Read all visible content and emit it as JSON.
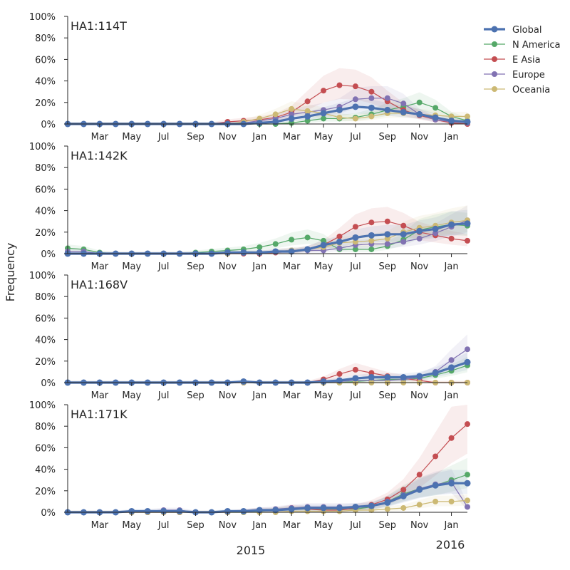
{
  "chart_data": {
    "type": "line",
    "ylabel": "Frequency",
    "year_labels": [
      "2015",
      "2016"
    ],
    "month_ticks": [
      "Mar",
      "May",
      "Jul",
      "Sep",
      "Nov",
      "Jan",
      "Mar",
      "May",
      "Jul",
      "Sep",
      "Nov",
      "Jan"
    ],
    "y_ticks": [
      "0%",
      "20%",
      "40%",
      "60%",
      "80%",
      "100%"
    ],
    "ylim": [
      0,
      1
    ],
    "x_labels": [
      "2014-01",
      "2014-02",
      "2014-03",
      "2014-04",
      "2014-05",
      "2014-06",
      "2014-07",
      "2014-08",
      "2014-09",
      "2014-10",
      "2014-11",
      "2014-12",
      "2015-01",
      "2015-02",
      "2015-03",
      "2015-04",
      "2015-05",
      "2015-06",
      "2015-07",
      "2015-08",
      "2015-09",
      "2015-10",
      "2015-11",
      "2015-12",
      "2016-01",
      "2016-02"
    ],
    "grid": false,
    "legend_position": "top-right",
    "series_names": [
      "Global",
      "N America",
      "E Asia",
      "Europe",
      "Oceania"
    ],
    "series_colors": [
      "#4c72b0",
      "#55a868",
      "#c44e52",
      "#8172b2",
      "#ccb974"
    ],
    "panels": [
      {
        "title": "HA1:114T",
        "series": [
          {
            "name": "Global",
            "values": [
              0,
              0,
              0,
              0,
              0,
              0,
              0,
              0,
              0,
              0,
              0,
              0,
              0.01,
              0.02,
              0.05,
              0.07,
              0.1,
              0.13,
              0.16,
              0.15,
              0.13,
              0.11,
              0.09,
              0.06,
              0.03,
              0.02
            ]
          },
          {
            "name": "N America",
            "values": [
              0,
              0,
              0,
              0,
              0,
              0,
              0,
              0,
              0,
              0,
              0,
              0,
              0,
              0,
              0.01,
              0.03,
              0.05,
              0.05,
              0.06,
              0.09,
              0.13,
              0.16,
              0.2,
              0.15,
              0.07,
              0.03
            ]
          },
          {
            "name": "E Asia",
            "values": [
              0,
              0,
              0,
              0,
              0,
              0,
              0,
              0,
              0,
              0,
              0.02,
              0.03,
              0.04,
              0.06,
              0.11,
              0.21,
              0.31,
              0.36,
              0.35,
              0.3,
              0.21,
              0.13,
              0.08,
              0.04,
              0.01,
              0
            ]
          },
          {
            "name": "Europe",
            "values": [
              0,
              0,
              0,
              0,
              0,
              0,
              0,
              0,
              0,
              0,
              0,
              0.01,
              0.03,
              0.05,
              0.09,
              0.11,
              0.13,
              0.16,
              0.23,
              0.24,
              0.24,
              0.19,
              0.09,
              0.04,
              0.02,
              0.01
            ]
          },
          {
            "name": "Oceania",
            "values": [
              0,
              0,
              0,
              0,
              0,
              0,
              0,
              0,
              0,
              0,
              0,
              0.02,
              0.05,
              0.09,
              0.14,
              0.12,
              0.1,
              0.06,
              0.05,
              0.07,
              0.1,
              0.1,
              0.09,
              0.08,
              0.07,
              0.07
            ]
          }
        ]
      },
      {
        "title": "HA1:142K",
        "series": [
          {
            "name": "Global",
            "values": [
              0,
              0,
              0,
              0,
              0,
              0,
              0,
              0,
              0,
              0,
              0.01,
              0.01,
              0.01,
              0.02,
              0.02,
              0.04,
              0.08,
              0.11,
              0.15,
              0.17,
              0.18,
              0.18,
              0.21,
              0.23,
              0.27,
              0.28
            ]
          },
          {
            "name": "N America",
            "values": [
              0.05,
              0.04,
              0.01,
              0,
              0,
              0,
              0,
              0,
              0.01,
              0.02,
              0.03,
              0.04,
              0.06,
              0.09,
              0.13,
              0.15,
              0.12,
              0.04,
              0.04,
              0.04,
              0.07,
              0.13,
              0.22,
              0.25,
              0.27,
              0.26
            ]
          },
          {
            "name": "E Asia",
            "values": [
              0,
              0,
              0,
              0,
              0,
              0,
              0,
              0,
              0,
              0,
              0,
              0,
              0,
              0.01,
              0.02,
              0.04,
              0.08,
              0.16,
              0.25,
              0.29,
              0.3,
              0.26,
              0.2,
              0.17,
              0.14,
              0.12
            ]
          },
          {
            "name": "Europe",
            "values": [
              0.02,
              0.02,
              0,
              0,
              0,
              0,
              0,
              0,
              0,
              0,
              0.01,
              0.01,
              0.01,
              0.02,
              0.03,
              0.03,
              0.03,
              0.05,
              0.08,
              0.09,
              0.09,
              0.11,
              0.14,
              0.19,
              0.25,
              0.31
            ]
          },
          {
            "name": "Oceania",
            "values": [
              0,
              0,
              0,
              0,
              0,
              0,
              0,
              0,
              0,
              0,
              0,
              0.01,
              0.01,
              0.02,
              0.03,
              0.04,
              0.06,
              0.1,
              0.11,
              0.12,
              0.14,
              0.2,
              0.24,
              0.26,
              0.29,
              0.31
            ]
          }
        ]
      },
      {
        "title": "HA1:168V",
        "series": [
          {
            "name": "Global",
            "values": [
              0,
              0,
              0,
              0,
              0,
              0,
              0,
              0,
              0,
              0,
              0,
              0.01,
              0,
              0,
              0,
              0,
              0.01,
              0.02,
              0.04,
              0.05,
              0.05,
              0.05,
              0.06,
              0.09,
              0.14,
              0.19
            ]
          },
          {
            "name": "N America",
            "values": [
              0,
              0,
              0,
              0,
              0,
              0,
              0,
              0,
              0,
              0,
              0,
              0,
              0,
              0,
              0,
              0,
              0,
              0,
              0.01,
              0.02,
              0.03,
              0.03,
              0.04,
              0.07,
              0.11,
              0.16
            ]
          },
          {
            "name": "E Asia",
            "values": [
              0,
              0,
              0,
              0,
              0,
              0,
              0,
              0,
              0,
              0,
              0,
              0,
              0,
              0,
              0,
              0,
              0.03,
              0.08,
              0.12,
              0.09,
              0.06,
              0.04,
              0.02,
              0,
              0,
              0
            ]
          },
          {
            "name": "Europe",
            "values": [
              0,
              0,
              0,
              0,
              0,
              0,
              0,
              0,
              0,
              0,
              0,
              0,
              0,
              0,
              0,
              0,
              0,
              0.01,
              0.02,
              0.02,
              0.02,
              0.03,
              0.05,
              0.1,
              0.21,
              0.31
            ]
          },
          {
            "name": "Oceania",
            "values": [
              0,
              0,
              0,
              0,
              0,
              0,
              0,
              0,
              0,
              0,
              0,
              0,
              0,
              0,
              0,
              0,
              0,
              0,
              0,
              0,
              0,
              0,
              0,
              0,
              0,
              0
            ]
          }
        ]
      },
      {
        "title": "HA1:171K",
        "series": [
          {
            "name": "Global",
            "values": [
              0,
              0,
              0,
              0,
              0.01,
              0.01,
              0.01,
              0.01,
              0,
              0,
              0.01,
              0.01,
              0.02,
              0.02,
              0.03,
              0.04,
              0.04,
              0.04,
              0.05,
              0.06,
              0.09,
              0.15,
              0.21,
              0.25,
              0.27,
              0.27
            ]
          },
          {
            "name": "N America",
            "values": [
              0,
              0,
              0,
              0,
              0,
              0,
              0,
              0,
              0,
              0,
              0,
              0,
              0.01,
              0.02,
              0.03,
              0.03,
              0.03,
              0.03,
              0.03,
              0.05,
              0.1,
              0.17,
              0.22,
              0.25,
              0.3,
              0.35
            ]
          },
          {
            "name": "E Asia",
            "values": [
              0,
              0,
              0,
              0,
              0,
              0,
              0,
              0,
              0,
              0,
              0,
              0.01,
              0.02,
              0.02,
              0.04,
              0.03,
              0.02,
              0.02,
              0.04,
              0.07,
              0.12,
              0.21,
              0.35,
              0.52,
              0.69,
              0.82
            ]
          },
          {
            "name": "Europe",
            "values": [
              0,
              0,
              0,
              0,
              0,
              0.01,
              0.02,
              0.02,
              0,
              0,
              0,
              0.01,
              0.02,
              0.03,
              0.04,
              0.05,
              0.05,
              0.05,
              0.05,
              0.05,
              0.1,
              0.16,
              0.22,
              0.26,
              0.28,
              0.05
            ]
          },
          {
            "name": "Oceania",
            "values": [
              0,
              0,
              0,
              0,
              0,
              0,
              0,
              0,
              0,
              0,
              0,
              0,
              0,
              0,
              0.01,
              0.01,
              0.01,
              0.01,
              0.02,
              0.02,
              0.03,
              0.04,
              0.07,
              0.1,
              0.1,
              0.11
            ]
          }
        ]
      }
    ]
  }
}
